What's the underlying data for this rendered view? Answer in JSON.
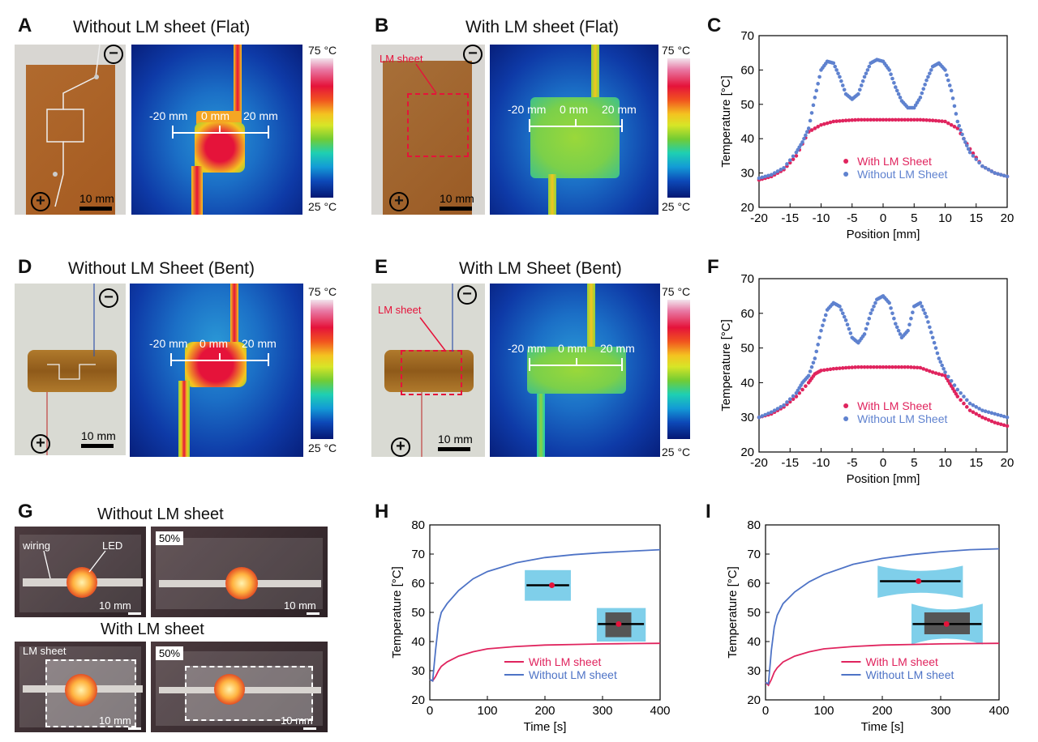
{
  "panels": {
    "A": {
      "letter": "A",
      "title": "Without LM sheet (Flat)",
      "marks": [
        "-20 mm",
        "0 mm",
        "20 mm"
      ],
      "scale": "10 mm",
      "cb_top": "75 °C",
      "cb_bottom": "25 °C"
    },
    "B": {
      "letter": "B",
      "title": "With LM sheet (Flat)",
      "marks": [
        "-20 mm",
        "0 mm",
        "20 mm"
      ],
      "scale": "10 mm",
      "cb_top": "75 °C",
      "cb_bottom": "25 °C",
      "annotation": "LM sheet"
    },
    "D": {
      "letter": "D",
      "title": "Without LM Sheet (Bent)",
      "marks": [
        "-20 mm",
        "0 mm",
        "20 mm"
      ],
      "scale": "10 mm",
      "cb_top": "75 °C",
      "cb_bottom": "25 °C"
    },
    "E": {
      "letter": "E",
      "title": "With LM Sheet (Bent)",
      "marks": [
        "-20 mm",
        "0 mm",
        "20 mm"
      ],
      "scale": "10 mm",
      "cb_top": "75 °C",
      "cb_bottom": "25 °C",
      "annotation": "LM sheet"
    },
    "G": {
      "letter": "G",
      "title_top": "Without LM sheet",
      "title_bottom": "With LM sheet",
      "wiring": "wiring",
      "led": "LED",
      "lm_sheet": "LM sheet",
      "pct": "50%",
      "scale": "10 mm"
    },
    "symbols": {
      "plus": "+",
      "minus": "−"
    }
  },
  "chart_data": [
    {
      "id": "C",
      "letter": "C",
      "type": "scatter",
      "xlabel": "Position [mm]",
      "ylabel": "Temperature [°C]",
      "xlim": [
        -20,
        20
      ],
      "ylim": [
        20,
        70
      ],
      "xticks": [
        -20,
        -15,
        -10,
        -5,
        0,
        5,
        10,
        15,
        20
      ],
      "yticks": [
        20,
        30,
        40,
        50,
        60,
        70
      ],
      "legend": "center-bottom",
      "series": [
        {
          "name": "With LM Sheet",
          "color": "#e0245e",
          "x": [
            -20,
            -18,
            -16,
            -14,
            -12,
            -10,
            -8,
            -6,
            -4,
            -2,
            0,
            2,
            4,
            6,
            8,
            10,
            12,
            14,
            16,
            18,
            20
          ],
          "y": [
            28,
            29,
            31,
            35,
            42,
            44,
            45,
            45.3,
            45.5,
            45.5,
            45.5,
            45.5,
            45.5,
            45.5,
            45.3,
            45,
            43,
            37,
            32,
            30,
            29
          ]
        },
        {
          "name": "Without LM Sheet",
          "color": "#5f82cf",
          "x": [
            -20,
            -18,
            -16,
            -14,
            -13,
            -12,
            -11,
            -10,
            -9,
            -8,
            -7,
            -6,
            -5,
            -4,
            -3,
            -2,
            -1,
            0,
            1,
            2,
            3,
            4,
            5,
            6,
            7,
            8,
            9,
            10,
            11,
            12,
            13,
            14,
            16,
            18,
            20
          ],
          "y": [
            28.5,
            29.5,
            31.5,
            36,
            39,
            43,
            52,
            60,
            62.5,
            62,
            58,
            53,
            51.5,
            53,
            58,
            62,
            63,
            62.5,
            60,
            55,
            51,
            49,
            49,
            52,
            57,
            61,
            62,
            60,
            54,
            45,
            40,
            36,
            32,
            30,
            29
          ]
        }
      ]
    },
    {
      "id": "F",
      "letter": "F",
      "type": "scatter",
      "xlabel": "Position [mm]",
      "ylabel": "Temperature [°C]",
      "xlim": [
        -20,
        20
      ],
      "ylim": [
        20,
        70
      ],
      "xticks": [
        -20,
        -15,
        -10,
        -5,
        0,
        5,
        10,
        15,
        20
      ],
      "yticks": [
        20,
        30,
        40,
        50,
        60,
        70
      ],
      "legend": "center-bottom",
      "series": [
        {
          "name": "With LM Sheet",
          "color": "#e0245e",
          "x": [
            -20,
            -18,
            -16,
            -14,
            -12,
            -11,
            -10,
            -8,
            -6,
            -4,
            -2,
            0,
            2,
            4,
            6,
            8,
            10,
            11,
            12,
            14,
            16,
            18,
            20
          ],
          "y": [
            30,
            31,
            33,
            36,
            40,
            42.5,
            43.5,
            44,
            44.3,
            44.5,
            44.5,
            44.5,
            44.5,
            44.5,
            44.3,
            43,
            42,
            39,
            36,
            32,
            30,
            28.5,
            27.5
          ]
        },
        {
          "name": "Without LM Sheet",
          "color": "#5f82cf",
          "x": [
            -20,
            -18,
            -16,
            -14,
            -13,
            -12,
            -11,
            -10,
            -9,
            -8,
            -7,
            -6,
            -5,
            -4,
            -3,
            -2,
            -1,
            0,
            1,
            2,
            3,
            4,
            5,
            6,
            7,
            8,
            9,
            10,
            12,
            14,
            16,
            18,
            20
          ],
          "y": [
            30,
            31.5,
            33.5,
            37,
            40,
            42,
            47,
            55,
            61,
            63,
            62,
            58,
            53,
            51.5,
            54,
            60,
            64,
            65,
            63,
            57,
            53,
            55,
            62,
            63,
            59,
            53,
            47,
            43,
            38,
            34,
            32,
            31,
            30
          ]
        }
      ]
    },
    {
      "id": "H",
      "letter": "H",
      "type": "line",
      "xlabel": "Time [s]",
      "ylabel": "Temperature [°C]",
      "xlim": [
        0,
        400
      ],
      "ylim": [
        20,
        80
      ],
      "xticks": [
        0,
        100,
        200,
        300,
        400
      ],
      "yticks": [
        20,
        30,
        40,
        50,
        60,
        70,
        80
      ],
      "legend": "bottom-right",
      "series": [
        {
          "name": "With LM sheet",
          "color": "#e0245e",
          "x": [
            0,
            5,
            10,
            15,
            20,
            30,
            50,
            75,
            100,
            150,
            200,
            250,
            300,
            350,
            400
          ],
          "y": [
            27,
            26.5,
            28,
            30,
            31.5,
            33,
            35,
            36.5,
            37.5,
            38.3,
            38.8,
            39,
            39.2,
            39.3,
            39.4
          ]
        },
        {
          "name": "Without LM sheet",
          "color": "#4e73c6",
          "x": [
            0,
            5,
            10,
            15,
            20,
            30,
            50,
            75,
            100,
            150,
            200,
            250,
            300,
            350,
            400
          ],
          "y": [
            27,
            26.5,
            37,
            46,
            50,
            53,
            57.5,
            61.5,
            64,
            67,
            68.8,
            69.8,
            70.5,
            71,
            71.5
          ]
        }
      ]
    },
    {
      "id": "I",
      "letter": "I",
      "type": "line",
      "xlabel": "Time [s]",
      "ylabel": "Temperature [°C]",
      "xlim": [
        0,
        400
      ],
      "ylim": [
        20,
        80
      ],
      "xticks": [
        0,
        100,
        200,
        300,
        400
      ],
      "yticks": [
        20,
        30,
        40,
        50,
        60,
        70,
        80
      ],
      "legend": "bottom-right",
      "series": [
        {
          "name": "With LM sheet",
          "color": "#e0245e",
          "x": [
            0,
            5,
            10,
            15,
            20,
            30,
            50,
            75,
            100,
            150,
            200,
            250,
            300,
            350,
            400
          ],
          "y": [
            26,
            25,
            27,
            29.5,
            31,
            33,
            35,
            36.5,
            37.5,
            38.3,
            38.8,
            39,
            39.2,
            39.3,
            39.4
          ]
        },
        {
          "name": "Without LM sheet",
          "color": "#4e73c6",
          "x": [
            0,
            5,
            10,
            15,
            20,
            30,
            50,
            75,
            100,
            150,
            200,
            250,
            300,
            350,
            400
          ],
          "y": [
            26,
            25.5,
            37,
            45,
            49,
            53,
            57,
            60.5,
            63,
            66.5,
            68.5,
            69.8,
            70.8,
            71.5,
            71.8
          ]
        }
      ]
    }
  ]
}
